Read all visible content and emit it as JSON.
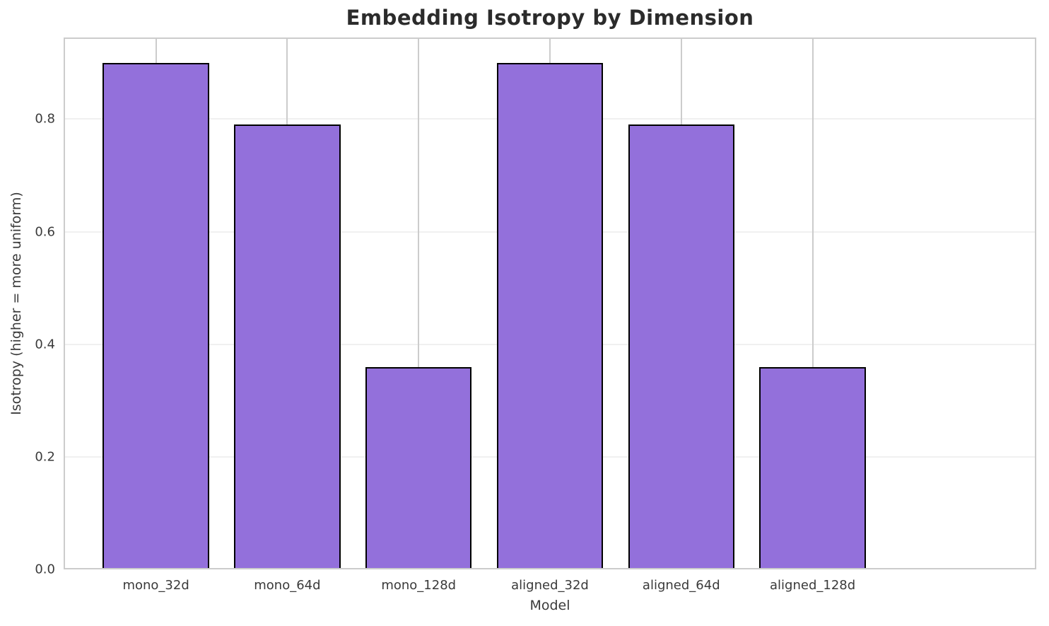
{
  "chart_data": {
    "type": "bar",
    "title": "Embedding Isotropy by Dimension",
    "xlabel": "Model",
    "ylabel": "Isotropy (higher = more uniform)",
    "categories": [
      "mono_32d",
      "mono_64d",
      "mono_128d",
      "aligned_32d",
      "aligned_64d",
      "aligned_128d"
    ],
    "values": [
      0.9,
      0.79,
      0.36,
      0.9,
      0.79,
      0.36
    ],
    "ylim": [
      0,
      0.945
    ],
    "ytick_labels": [
      "0.0",
      "0.2",
      "0.4",
      "0.6",
      "0.8"
    ],
    "grid": "both",
    "legend": "none",
    "colors": {
      "bar_fill": "#9370db",
      "bar_edge": "#000000",
      "grid_horizontal": "#f0f0f0",
      "grid_vertical": "#cccccc",
      "frame": "#cccccc",
      "title_text": "#2b2b2b",
      "tick_text": "#3a3a3a"
    }
  }
}
